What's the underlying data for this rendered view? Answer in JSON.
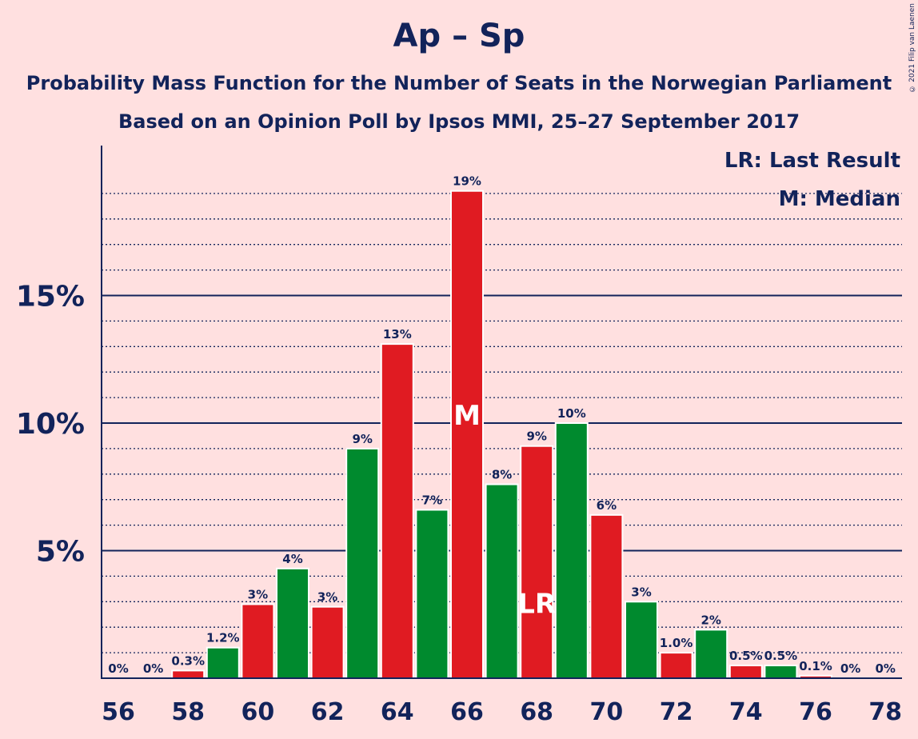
{
  "title": "Ap – Sp",
  "subtitle1": "Probability Mass Function for the Number of Seats in the Norwegian Parliament",
  "subtitle2": "Based on an Opinion Poll by Ipsos MMI, 25–27 September 2017",
  "copyright": "© 2021 Filip van Laenen",
  "legend": {
    "last_result": "LR: Last Result",
    "median": "M: Median"
  },
  "colors": {
    "background": "#ffe0e0",
    "red": "#e01b22",
    "green": "#008a2e",
    "text": "#12235a"
  },
  "chart_data": {
    "type": "bar",
    "xlabel": "",
    "ylabel": "",
    "ylim": [
      0,
      20.5
    ],
    "yticks": [
      {
        "value": 5,
        "label": "5%"
      },
      {
        "value": 10,
        "label": "10%"
      },
      {
        "value": 15,
        "label": "15%"
      }
    ],
    "xticks": [
      56,
      58,
      60,
      62,
      64,
      66,
      68,
      70,
      72,
      74,
      76,
      78
    ],
    "median_seat": 66,
    "last_result_seat": 68,
    "median_marker": "M",
    "last_result_marker": "LR",
    "bars": [
      {
        "seat": 56,
        "value": 0,
        "label": "0%",
        "color": "red"
      },
      {
        "seat": 57,
        "value": 0,
        "label": "0%",
        "color": "green"
      },
      {
        "seat": 58,
        "value": 0.3,
        "label": "0.3%",
        "color": "red"
      },
      {
        "seat": 59,
        "value": 1.2,
        "label": "1.2%",
        "color": "green"
      },
      {
        "seat": 60,
        "value": 2.9,
        "label": "3%",
        "color": "red"
      },
      {
        "seat": 61,
        "value": 4.3,
        "label": "4%",
        "color": "green"
      },
      {
        "seat": 62,
        "value": 2.8,
        "label": "3%",
        "color": "red"
      },
      {
        "seat": 63,
        "value": 9.0,
        "label": "9%",
        "color": "green"
      },
      {
        "seat": 64,
        "value": 13.1,
        "label": "13%",
        "color": "red"
      },
      {
        "seat": 65,
        "value": 6.6,
        "label": "7%",
        "color": "green"
      },
      {
        "seat": 66,
        "value": 19.1,
        "label": "19%",
        "color": "red"
      },
      {
        "seat": 67,
        "value": 7.6,
        "label": "8%",
        "color": "green"
      },
      {
        "seat": 68,
        "value": 9.1,
        "label": "9%",
        "color": "red"
      },
      {
        "seat": 69,
        "value": 10.0,
        "label": "10%",
        "color": "green"
      },
      {
        "seat": 70,
        "value": 6.4,
        "label": "6%",
        "color": "red"
      },
      {
        "seat": 71,
        "value": 3.0,
        "label": "3%",
        "color": "green"
      },
      {
        "seat": 72,
        "value": 1.0,
        "label": "1.0%",
        "color": "red"
      },
      {
        "seat": 73,
        "value": 1.9,
        "label": "2%",
        "color": "green"
      },
      {
        "seat": 74,
        "value": 0.5,
        "label": "0.5%",
        "color": "red"
      },
      {
        "seat": 75,
        "value": 0.5,
        "label": "0.5%",
        "color": "green"
      },
      {
        "seat": 76,
        "value": 0.1,
        "label": "0.1%",
        "color": "red"
      },
      {
        "seat": 77,
        "value": 0,
        "label": "0%",
        "color": "green"
      },
      {
        "seat": 78,
        "value": 0,
        "label": "0%",
        "color": "red"
      }
    ]
  }
}
